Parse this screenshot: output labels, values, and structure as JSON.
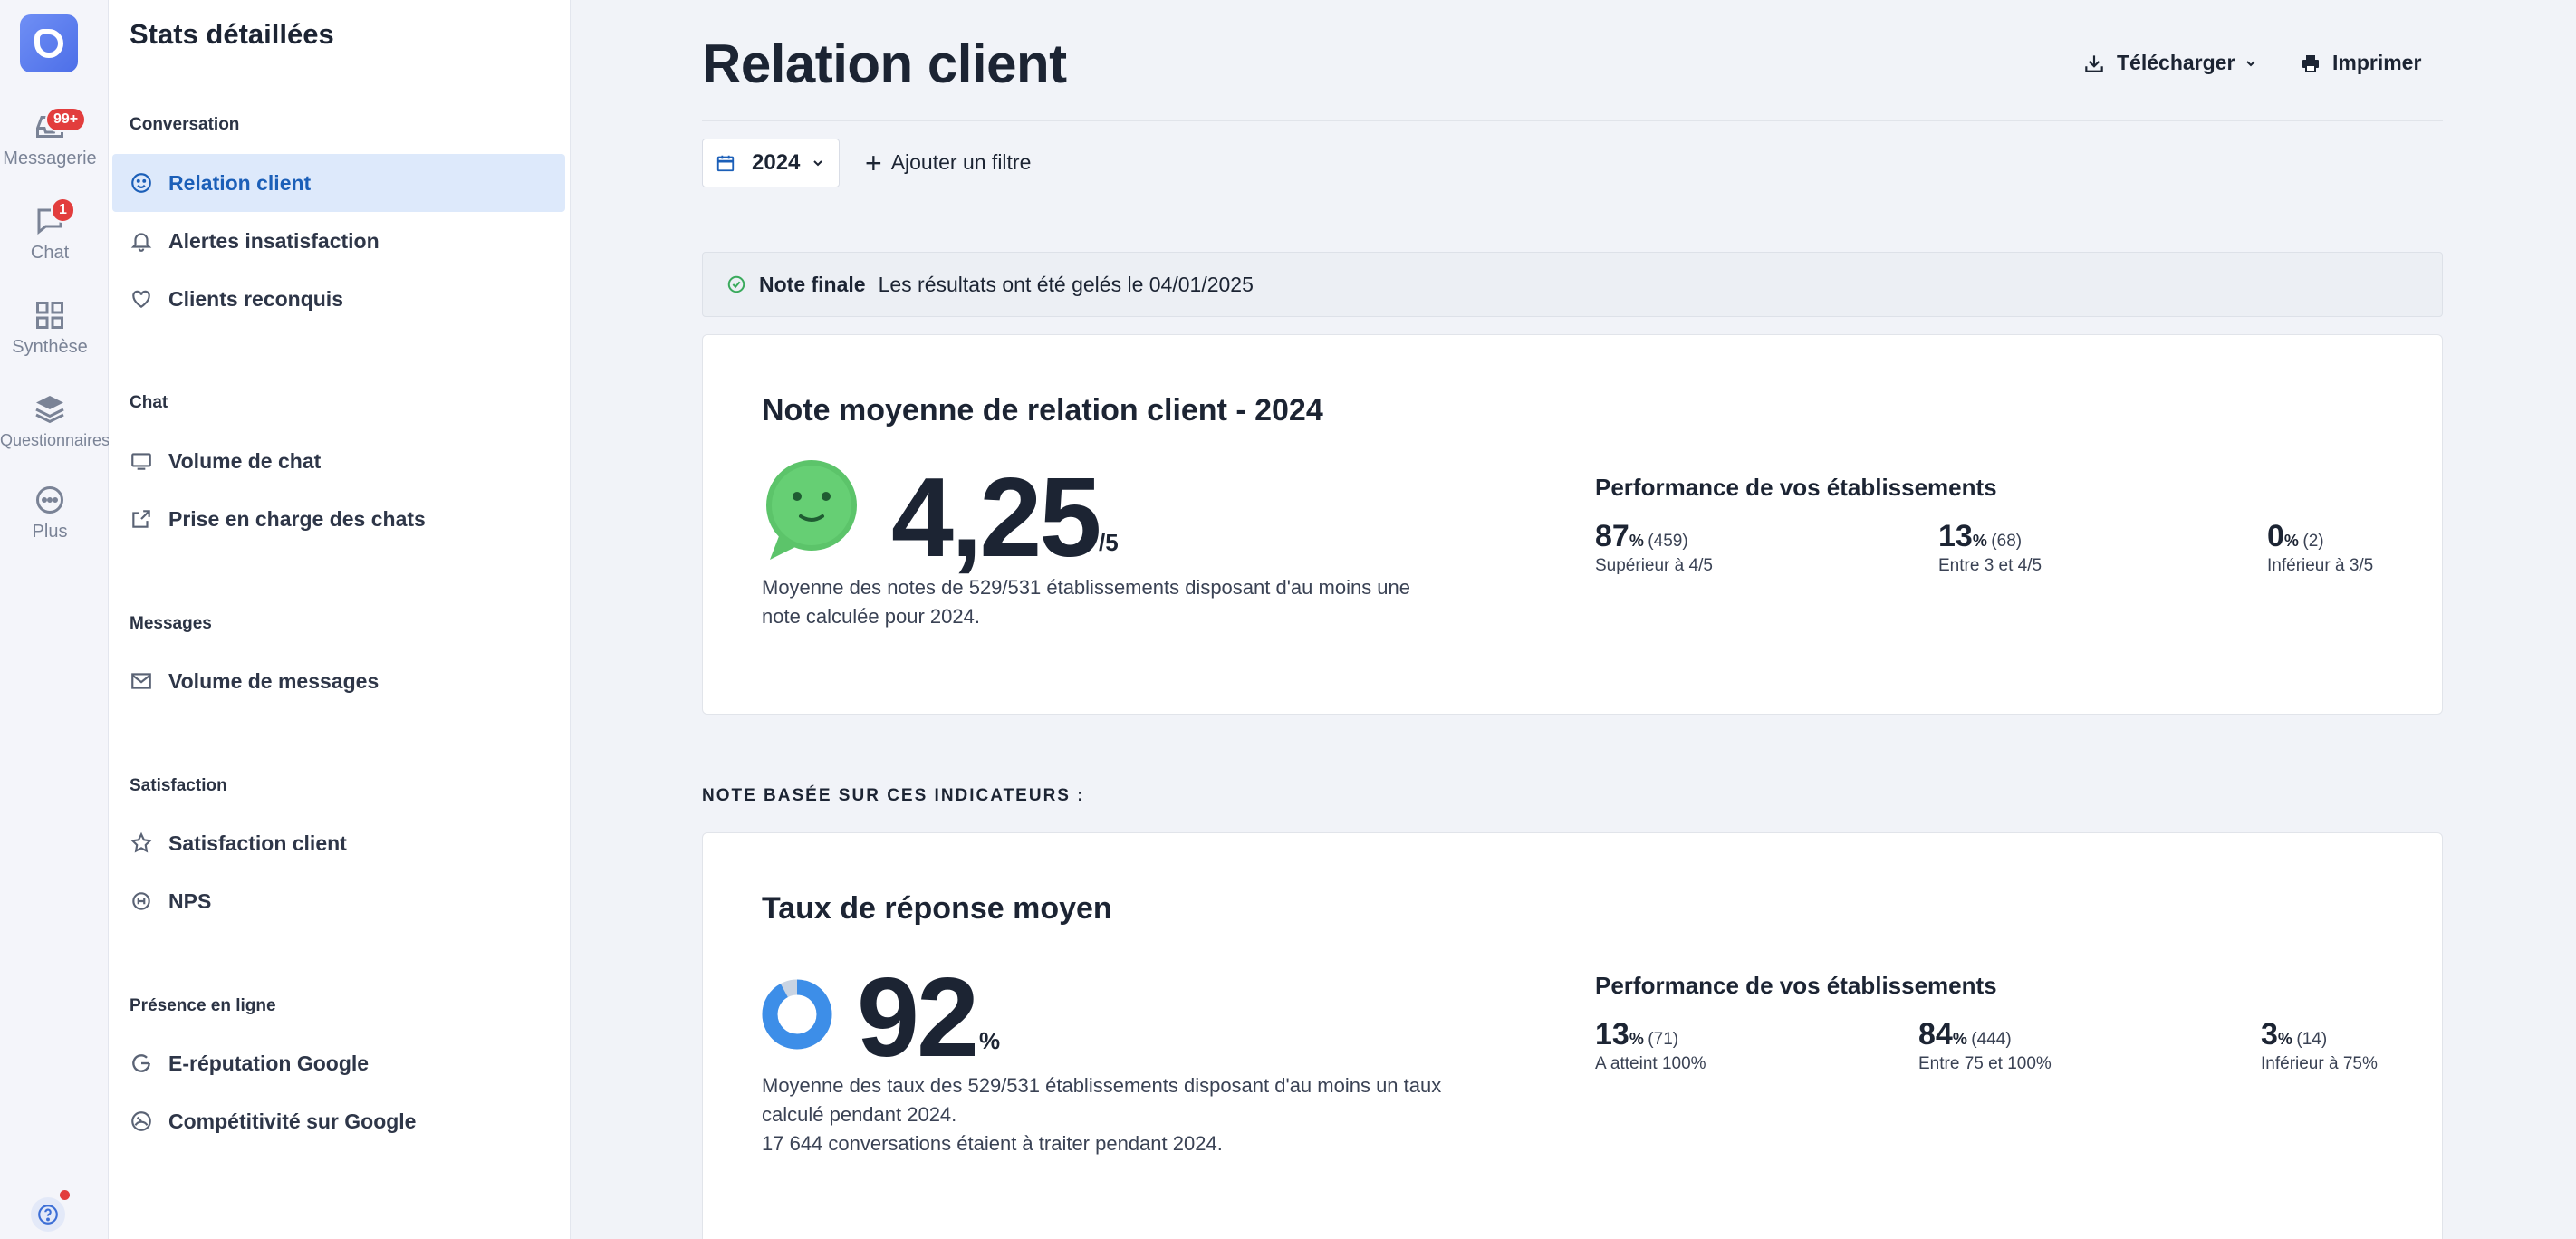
{
  "rail": {
    "items": [
      {
        "label": "Messagerie",
        "badge": "99+"
      },
      {
        "label": "Chat",
        "badge": "1"
      },
      {
        "label": "Synthèse"
      },
      {
        "label": "Questionnaires"
      },
      {
        "label": "Plus"
      }
    ]
  },
  "sidebar": {
    "title": "Stats détaillées",
    "sections": [
      {
        "title": "Conversation",
        "items": [
          "Relation client",
          "Alertes insatisfaction",
          "Clients reconquis"
        ]
      },
      {
        "title": "Chat",
        "items": [
          "Volume de chat",
          "Prise en charge des chats"
        ]
      },
      {
        "title": "Messages",
        "items": [
          "Volume de messages"
        ]
      },
      {
        "title": "Satisfaction",
        "items": [
          "Satisfaction client",
          "NPS"
        ]
      },
      {
        "title": "Présence en ligne",
        "items": [
          "E-réputation Google",
          "Compétitivité sur Google"
        ]
      }
    ],
    "active_item": "Relation client"
  },
  "header": {
    "title": "Relation client",
    "download_label": "Télécharger",
    "print_label": "Imprimer"
  },
  "filters": {
    "year": "2024",
    "add_filter_label": "Ajouter un filtre"
  },
  "banner": {
    "bold": "Note finale",
    "text": "Les résultats ont été gelés le 04/01/2025"
  },
  "score_card": {
    "title": "Note moyenne de relation client - 2024",
    "value": "4,25",
    "unit": "/5",
    "description": "Moyenne des notes de 529/531 établissements disposant d'au moins une note calculée pour 2024.",
    "perf_title": "Performance de vos établissements",
    "stats": [
      {
        "value": "87",
        "pct": "%",
        "count": "(459)",
        "label": "Supérieur à 4/5"
      },
      {
        "value": "13",
        "pct": "%",
        "count": "(68)",
        "label": "Entre 3 et 4/5"
      },
      {
        "value": "0",
        "pct": "%",
        "count": "(2)",
        "label": "Inférieur à 3/5"
      }
    ]
  },
  "indicators_label": "NOTE BASÉE SUR CES INDICATEURS :",
  "response_card": {
    "title": "Taux de réponse moyen",
    "value": "92",
    "unit": "%",
    "donut_fraction": 0.92,
    "description_1": "Moyenne des taux des 529/531 établissements disposant d'au moins un taux calculé pendant 2024.",
    "description_2": "17 644 conversations étaient à traiter pendant 2024.",
    "perf_title": "Performance de vos établissements",
    "stats": [
      {
        "value": "13",
        "pct": "%",
        "count": "(71)",
        "label": "A atteint 100%"
      },
      {
        "value": "84",
        "pct": "%",
        "count": "(444)",
        "label": "Entre 75 et 100%"
      },
      {
        "value": "3",
        "pct": "%",
        "count": "(14)",
        "label": "Inférieur à 75%"
      }
    ]
  },
  "colors": {
    "accent": "#1b5fb8",
    "active_bg": "#dde9fb",
    "smiley": "#5cc46a",
    "donut": "#3d8ee8",
    "badge": "#e23d3d"
  }
}
